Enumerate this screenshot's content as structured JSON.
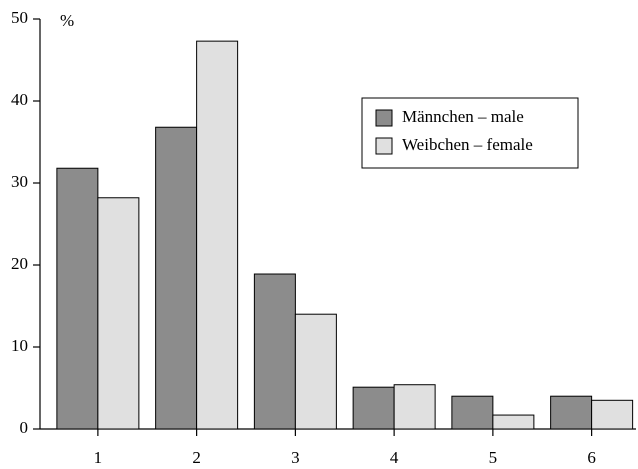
{
  "chart_data": {
    "type": "bar",
    "y_label": "%",
    "categories": [
      "1",
      "2",
      "3",
      "4",
      "5",
      "6"
    ],
    "series": [
      {
        "name": "Männchen – male",
        "color": "#8c8c8c",
        "values": [
          31.8,
          36.8,
          18.9,
          5.1,
          4.0,
          4.0
        ]
      },
      {
        "name": "Weibchen – female",
        "color": "#e0e0e0",
        "values": [
          28.2,
          47.3,
          14.0,
          5.4,
          1.7,
          3.5
        ]
      }
    ],
    "ylim": [
      0,
      50
    ],
    "yticks": [
      0,
      10,
      20,
      30,
      40,
      50
    ],
    "legend": "upper right"
  }
}
